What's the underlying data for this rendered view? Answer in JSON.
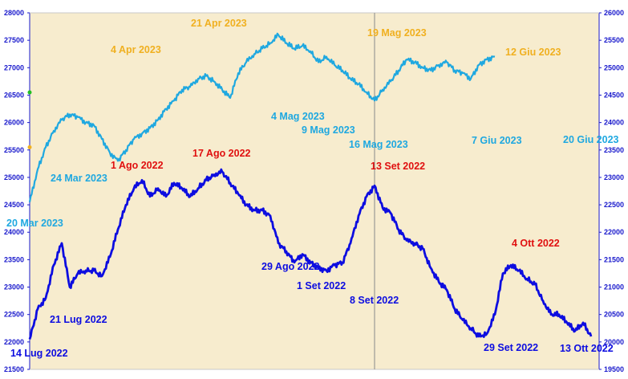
{
  "chart_data": {
    "type": "line",
    "title": "",
    "xlabel": "",
    "grid": false,
    "background": "#f7ecce",
    "colors": {
      "series_2023": "#1fa8e0",
      "series_2022": "#0d0de0",
      "label_peak": "#e01010",
      "label_2023_peak": "#f0b020",
      "axis_text": "#1a1acc",
      "divider": "#8a8a8a"
    },
    "left_axis": {
      "ylim": [
        21500,
        28000
      ],
      "ticks": [
        "21500",
        "22000",
        "22500",
        "23000",
        "23500",
        "24000",
        "24500",
        "25000",
        "25500",
        "26000",
        "26500",
        "27000",
        "27500",
        "28000"
      ]
    },
    "right_axis": {
      "ylim": [
        19500,
        26000
      ],
      "ticks": [
        "19500",
        "20000",
        "20500",
        "21000",
        "21500",
        "22000",
        "22500",
        "23000",
        "23500",
        "24000",
        "24500",
        "25000",
        "25500",
        "26000"
      ]
    },
    "left_axis_markers": [
      {
        "value": 26550,
        "color": "#22c022"
      },
      {
        "value": 25550,
        "color": "#f0b020"
      }
    ],
    "divider_session": 43,
    "sessions": 71,
    "series": [
      {
        "name": "",
        "axis": "left",
        "color": "#1fa8e0",
        "points": [
          [
            0,
            24550
          ],
          [
            1,
            25150
          ],
          [
            2,
            25550
          ],
          [
            3,
            25850
          ],
          [
            4,
            26050
          ],
          [
            5,
            26150
          ],
          [
            6,
            26100
          ],
          [
            7,
            26000
          ],
          [
            8,
            25950
          ],
          [
            9,
            25700
          ],
          [
            10,
            25450
          ],
          [
            11,
            25300
          ],
          [
            12,
            25500
          ],
          [
            13,
            25700
          ],
          [
            14,
            25800
          ],
          [
            15,
            25900
          ],
          [
            16,
            26050
          ],
          [
            17,
            26250
          ],
          [
            18,
            26400
          ],
          [
            19,
            26600
          ],
          [
            20,
            26650
          ],
          [
            21,
            26800
          ],
          [
            22,
            26850
          ],
          [
            23,
            26750
          ],
          [
            24,
            26600
          ],
          [
            25,
            26450
          ],
          [
            26,
            26900
          ],
          [
            27,
            27100
          ],
          [
            28,
            27250
          ],
          [
            29,
            27350
          ],
          [
            30,
            27450
          ],
          [
            31,
            27600
          ],
          [
            32,
            27450
          ],
          [
            33,
            27350
          ],
          [
            34,
            27400
          ],
          [
            35,
            27300
          ],
          [
            36,
            27100
          ],
          [
            37,
            27200
          ],
          [
            38,
            27050
          ],
          [
            39,
            26950
          ],
          [
            40,
            26800
          ],
          [
            41,
            26700
          ],
          [
            42,
            26550
          ],
          [
            43,
            26400
          ],
          [
            44,
            26600
          ],
          [
            45,
            26750
          ],
          [
            46,
            26950
          ],
          [
            47,
            27150
          ],
          [
            48,
            27100
          ],
          [
            49,
            27000
          ],
          [
            50,
            26950
          ],
          [
            51,
            27050
          ],
          [
            52,
            27100
          ],
          [
            53,
            26950
          ],
          [
            54,
            26900
          ],
          [
            55,
            26800
          ],
          [
            56,
            27050
          ],
          [
            57,
            27150
          ],
          [
            58,
            27200
          ]
        ]
      },
      {
        "name": "",
        "axis": "right",
        "color": "#0d0de0",
        "points": [
          [
            0,
            20050
          ],
          [
            1,
            20600
          ],
          [
            2,
            20800
          ],
          [
            3,
            21400
          ],
          [
            4,
            21800
          ],
          [
            5,
            21000
          ],
          [
            6,
            21250
          ],
          [
            7,
            21300
          ],
          [
            8,
            21300
          ],
          [
            9,
            21200
          ],
          [
            10,
            21550
          ],
          [
            11,
            22050
          ],
          [
            12,
            22500
          ],
          [
            13,
            22800
          ],
          [
            14,
            22950
          ],
          [
            15,
            22650
          ],
          [
            16,
            22800
          ],
          [
            17,
            22650
          ],
          [
            18,
            22900
          ],
          [
            19,
            22800
          ],
          [
            20,
            22650
          ],
          [
            21,
            22800
          ],
          [
            22,
            22950
          ],
          [
            23,
            23050
          ],
          [
            24,
            23100
          ],
          [
            25,
            22900
          ],
          [
            26,
            22700
          ],
          [
            27,
            22500
          ],
          [
            28,
            22400
          ],
          [
            29,
            22400
          ],
          [
            30,
            22300
          ],
          [
            31,
            21800
          ],
          [
            32,
            21650
          ],
          [
            33,
            21450
          ],
          [
            34,
            21600
          ],
          [
            35,
            21450
          ],
          [
            36,
            21350
          ],
          [
            37,
            21300
          ],
          [
            38,
            21400
          ],
          [
            39,
            21450
          ],
          [
            40,
            21800
          ],
          [
            41,
            22300
          ],
          [
            42,
            22650
          ],
          [
            43,
            22850
          ],
          [
            44,
            22450
          ],
          [
            45,
            22350
          ],
          [
            46,
            22050
          ],
          [
            47,
            21850
          ],
          [
            48,
            21800
          ],
          [
            49,
            21700
          ],
          [
            50,
            21350
          ],
          [
            51,
            21100
          ],
          [
            52,
            20950
          ],
          [
            53,
            20600
          ],
          [
            54,
            20400
          ],
          [
            55,
            20250
          ],
          [
            56,
            20100
          ],
          [
            57,
            20150
          ],
          [
            58,
            20500
          ],
          [
            59,
            21250
          ],
          [
            60,
            21400
          ],
          [
            61,
            21300
          ],
          [
            62,
            21150
          ],
          [
            63,
            21050
          ],
          [
            64,
            20750
          ],
          [
            65,
            20500
          ],
          [
            66,
            20500
          ],
          [
            67,
            20350
          ],
          [
            68,
            20200
          ],
          [
            69,
            20350
          ],
          [
            70,
            20100
          ]
        ]
      }
    ],
    "annotations": [
      {
        "text": "21 Apr 2023",
        "color": "#f0b020",
        "session": 31,
        "side": "above"
      },
      {
        "text": "4 Apr 2023",
        "color": "#f0b020",
        "session": 21,
        "side": "above"
      },
      {
        "text": "19 Mag 2023",
        "color": "#f0b020",
        "session": 58,
        "side": "above"
      },
      {
        "text": "12 Giu 2023",
        "color": "#f0b020",
        "session": 80,
        "side": "above"
      },
      {
        "text": "24 Mar 2023",
        "color": "#1fa8e0",
        "session": 10,
        "side": "below"
      },
      {
        "text": "20 Mar 2023",
        "color": "#1fa8e0",
        "session": 0,
        "side": "below"
      },
      {
        "text": "4 Mag 2023",
        "color": "#1fa8e0",
        "session": 43,
        "side": "below"
      },
      {
        "text": "9 Mag 2023",
        "color": "#1fa8e0",
        "session": 48,
        "side": "below"
      },
      {
        "text": "16 Mag 2023",
        "color": "#1fa8e0",
        "session": 56,
        "side": "below"
      },
      {
        "text": "7 Giu 2023",
        "color": "#1fa8e0",
        "session": 76,
        "side": "below"
      },
      {
        "text": "20 Giu 2023",
        "color": "#1fa8e0",
        "session": 90,
        "side": "below"
      },
      {
        "text": "1 Ago 2022",
        "color": "#e01010",
        "session": 14,
        "side": "above"
      },
      {
        "text": "17 Ago 2022",
        "color": "#e01010",
        "session": 24,
        "side": "above"
      },
      {
        "text": "13 Set 2022",
        "color": "#e01010",
        "session": 43,
        "side": "above"
      },
      {
        "text": "4 Ott 2022",
        "color": "#e01010",
        "session": 60,
        "side": "above"
      },
      {
        "text": "21 Lug 2022",
        "color": "#0d0de0",
        "session": 5,
        "side": "below"
      },
      {
        "text": "14 Lug 2022",
        "color": "#0d0de0",
        "session": 0,
        "side": "below"
      },
      {
        "text": "29 Ago 2022",
        "color": "#0d0de0",
        "session": 30,
        "side": "below"
      },
      {
        "text": "1 Set 2022",
        "color": "#0d0de0",
        "session": 33,
        "side": "below"
      },
      {
        "text": "8 Set 2022",
        "color": "#0d0de0",
        "session": 38,
        "side": "below"
      },
      {
        "text": "29 Set 2022",
        "color": "#0d0de0",
        "session": 56,
        "side": "below"
      },
      {
        "text": "13 Ott 2022",
        "color": "#0d0de0",
        "session": 70,
        "side": "below"
      }
    ]
  }
}
